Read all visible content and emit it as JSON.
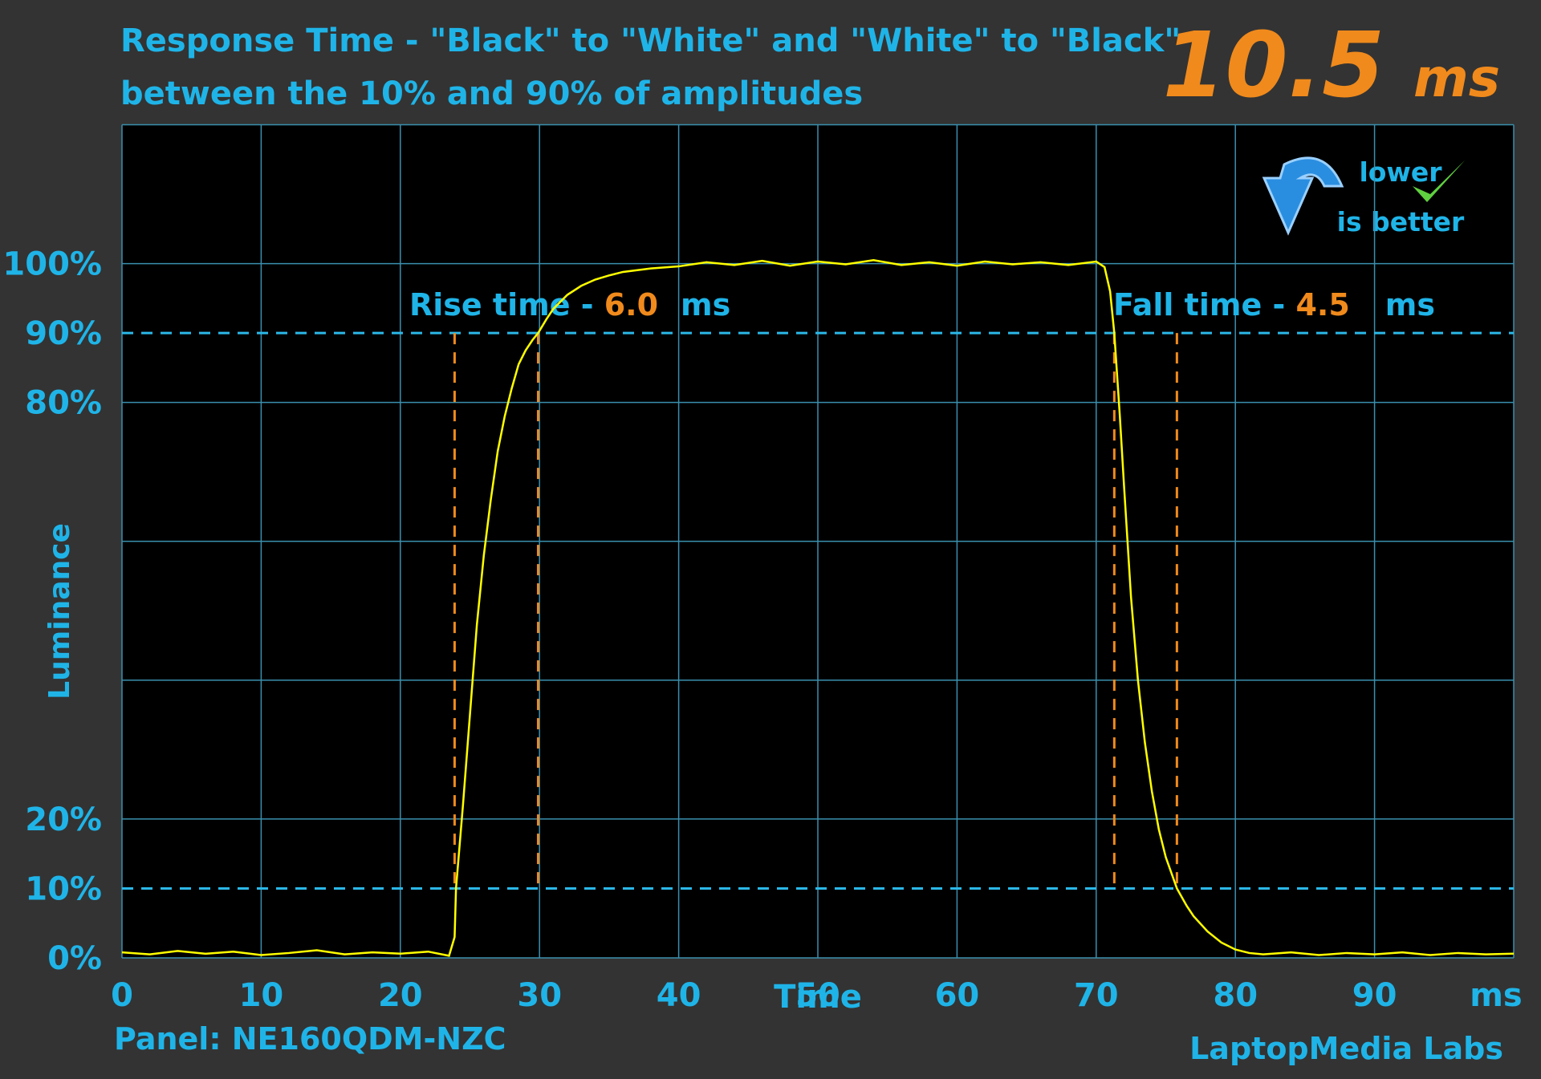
{
  "chart_data": {
    "type": "line",
    "title": [
      "Response Time - \"Black\" to \"White\" and \"White\" to \"Black\"",
      "between the 10% and 90% of amplitudes"
    ],
    "headline": {
      "value": "10.5",
      "unit": "ms"
    },
    "badge": [
      "lower",
      "is better"
    ],
    "ylabel": "Luminance",
    "xlabel": "Time",
    "panel": "Panel: NE160QDM-NZC",
    "credit": "LaptopMedia Labs",
    "xlim": [
      0,
      100
    ],
    "ylim": [
      0,
      120
    ],
    "xticks": [
      0,
      10,
      20,
      30,
      40,
      50,
      60,
      70,
      80,
      90,
      {
        "value": 100,
        "label": "ms"
      }
    ],
    "yticks": [
      {
        "value": 100,
        "label": "100%"
      },
      {
        "value": 90,
        "label": "90%"
      },
      {
        "value": 80,
        "label": "80%"
      },
      {
        "value": 20,
        "label": "20%"
      },
      {
        "value": 10,
        "label": "10%"
      },
      {
        "value": 0,
        "label": "0%"
      }
    ],
    "ygrid": [
      0,
      20,
      40,
      60,
      80,
      100,
      120
    ],
    "reference_lines": [
      10,
      90
    ],
    "annotations": [
      {
        "text": "Rise time - ",
        "value": "6.0",
        "unit": "ms",
        "markers": [
          23.9,
          29.9
        ]
      },
      {
        "text": "Fall time - ",
        "value": "4.5",
        "unit": "ms",
        "markers": [
          71.3,
          75.8
        ]
      }
    ],
    "grid": true,
    "series": [
      {
        "name": "Luminance",
        "color": "#ffff00",
        "x": [
          0,
          2,
          4,
          6,
          8,
          10,
          12,
          14,
          16,
          18,
          20,
          22,
          23.5,
          23.9,
          24,
          24.5,
          25,
          25.5,
          26,
          26.5,
          27,
          27.5,
          28,
          28.5,
          29,
          29.5,
          29.9,
          30.5,
          31,
          32,
          33,
          34,
          35,
          36,
          38,
          40,
          42,
          44,
          46,
          48,
          50,
          52,
          54,
          56,
          58,
          60,
          62,
          64,
          66,
          68,
          70,
          70.6,
          71,
          71.3,
          71.7,
          72,
          72.5,
          73,
          73.5,
          74,
          74.5,
          75,
          75.8,
          76.5,
          77,
          78,
          79,
          80,
          81,
          82,
          84,
          86,
          88,
          90,
          92,
          94,
          96,
          98,
          100
        ],
        "values": [
          0.8,
          0.5,
          1.0,
          0.6,
          0.9,
          0.4,
          0.7,
          1.1,
          0.5,
          0.8,
          0.6,
          0.9,
          0.3,
          3,
          10,
          22,
          35,
          48,
          58,
          66,
          73,
          78,
          82,
          85.5,
          87.5,
          89,
          90,
          92,
          93.5,
          95.5,
          96.8,
          97.7,
          98.3,
          98.8,
          99.3,
          99.6,
          100.2,
          99.8,
          100.4,
          99.7,
          100.3,
          99.9,
          100.5,
          99.8,
          100.2,
          99.7,
          100.3,
          99.9,
          100.2,
          99.8,
          100.3,
          99.5,
          96,
          90,
          78,
          68,
          52,
          40,
          31,
          24,
          18.5,
          14.5,
          10,
          7.5,
          6,
          3.8,
          2.2,
          1.2,
          0.7,
          0.5,
          0.8,
          0.4,
          0.7,
          0.5,
          0.8,
          0.4,
          0.7,
          0.5,
          0.6
        ]
      }
    ]
  }
}
